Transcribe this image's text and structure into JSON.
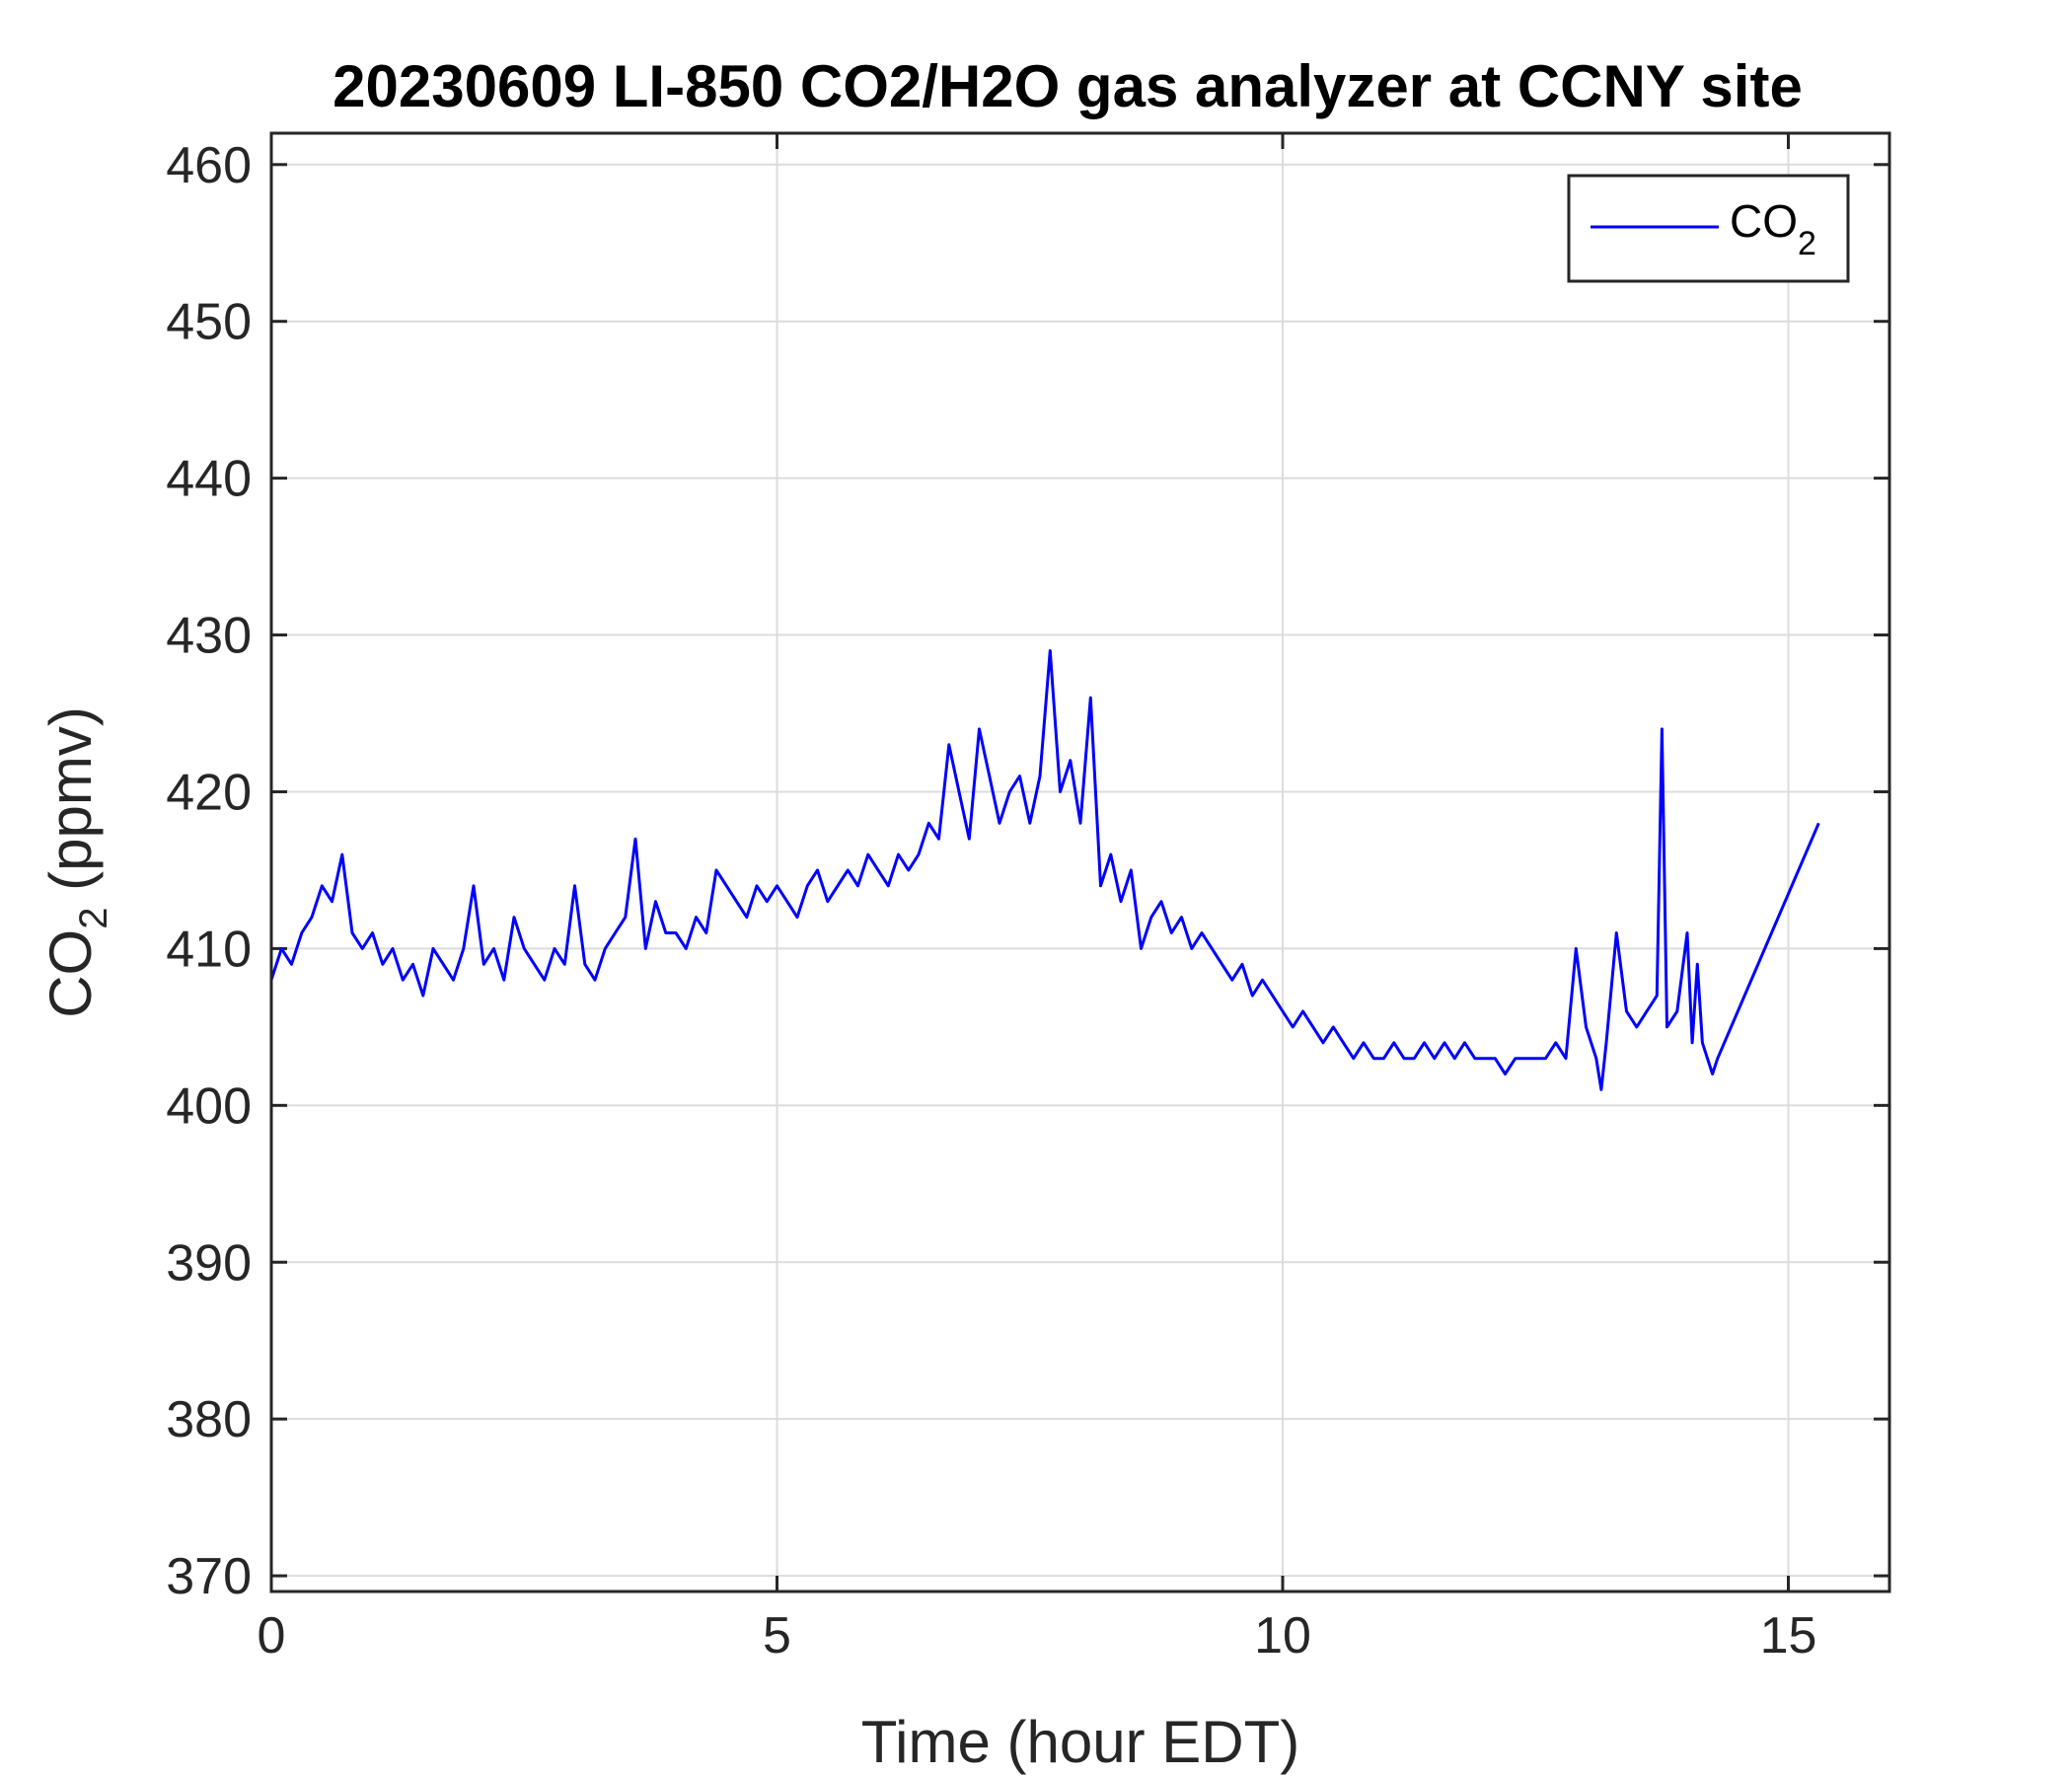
{
  "chart_data": {
    "type": "line",
    "title": "20230609 LI-850 CO2/H2O gas analyzer at CCNY site",
    "xlabel": "Time (hour EDT)",
    "ylabel": {
      "main": "CO",
      "sub": "2",
      "unit": " (ppmv)"
    },
    "xlim": [
      0,
      16
    ],
    "ylim": [
      369,
      462
    ],
    "xticks": [
      0,
      5,
      10,
      15
    ],
    "yticks": [
      370,
      380,
      390,
      400,
      410,
      420,
      430,
      440,
      450,
      460
    ],
    "grid": true,
    "legend": {
      "position": "top-right",
      "entries": [
        {
          "main": "CO",
          "sub": "2"
        }
      ]
    },
    "series": [
      {
        "name": "CO2",
        "color": "#0000ff",
        "x": [
          0.0,
          0.1,
          0.2,
          0.3,
          0.4,
          0.5,
          0.6,
          0.7,
          0.8,
          0.9,
          1.0,
          1.1,
          1.2,
          1.3,
          1.4,
          1.5,
          1.6,
          1.7,
          1.8,
          1.9,
          2.0,
          2.1,
          2.2,
          2.3,
          2.4,
          2.5,
          2.6,
          2.7,
          2.8,
          2.9,
          3.0,
          3.1,
          3.2,
          3.3,
          3.4,
          3.5,
          3.6,
          3.7,
          3.8,
          3.9,
          4.0,
          4.1,
          4.2,
          4.3,
          4.4,
          4.5,
          4.6,
          4.7,
          4.8,
          4.9,
          5.0,
          5.1,
          5.2,
          5.3,
          5.4,
          5.5,
          5.6,
          5.7,
          5.8,
          5.9,
          6.0,
          6.1,
          6.2,
          6.3,
          6.4,
          6.5,
          6.6,
          6.7,
          6.8,
          6.9,
          7.0,
          7.1,
          7.2,
          7.3,
          7.4,
          7.5,
          7.6,
          7.7,
          7.8,
          7.9,
          8.0,
          8.1,
          8.2,
          8.3,
          8.4,
          8.5,
          8.6,
          8.7,
          8.8,
          8.9,
          9.0,
          9.1,
          9.2,
          9.3,
          9.4,
          9.5,
          9.6,
          9.7,
          9.8,
          9.9,
          10.0,
          10.1,
          10.2,
          10.3,
          10.4,
          10.5,
          10.6,
          10.7,
          10.8,
          10.9,
          11.0,
          11.1,
          11.2,
          11.3,
          11.4,
          11.5,
          11.6,
          11.7,
          11.8,
          11.9,
          12.0,
          12.1,
          12.2,
          12.3,
          12.4,
          12.5,
          12.6,
          12.7,
          12.8,
          12.9,
          13.0,
          13.1,
          13.15,
          13.2,
          13.3,
          13.4,
          13.5,
          13.6,
          13.7,
          13.75,
          13.8,
          13.9,
          14.0,
          14.05,
          14.1,
          14.15,
          14.2,
          14.25,
          14.3,
          15.3
        ],
        "y": [
          408,
          410,
          409,
          411,
          412,
          414,
          413,
          416,
          411,
          410,
          411,
          409,
          410,
          408,
          409,
          407,
          410,
          409,
          408,
          410,
          414,
          409,
          410,
          408,
          412,
          410,
          409,
          408,
          410,
          409,
          414,
          409,
          408,
          410,
          411,
          412,
          417,
          410,
          413,
          411,
          411,
          410,
          412,
          411,
          415,
          414,
          413,
          412,
          414,
          413,
          414,
          413,
          412,
          414,
          415,
          413,
          414,
          415,
          414,
          416,
          415,
          414,
          416,
          415,
          416,
          418,
          417,
          423,
          420,
          417,
          424,
          421,
          418,
          420,
          421,
          418,
          421,
          429,
          420,
          422,
          418,
          426,
          414,
          416,
          413,
          415,
          410,
          412,
          413,
          411,
          412,
          410,
          411,
          410,
          409,
          408,
          409,
          407,
          408,
          407,
          406,
          405,
          406,
          405,
          404,
          405,
          404,
          403,
          404,
          403,
          403,
          404,
          403,
          403,
          404,
          403,
          404,
          403,
          404,
          403,
          403,
          403,
          402,
          403,
          403,
          403,
          403,
          404,
          403,
          410,
          405,
          403,
          401,
          404,
          411,
          406,
          405,
          406,
          407,
          424,
          405,
          406,
          411,
          404,
          409,
          404,
          403,
          402,
          403,
          418
        ]
      }
    ]
  }
}
